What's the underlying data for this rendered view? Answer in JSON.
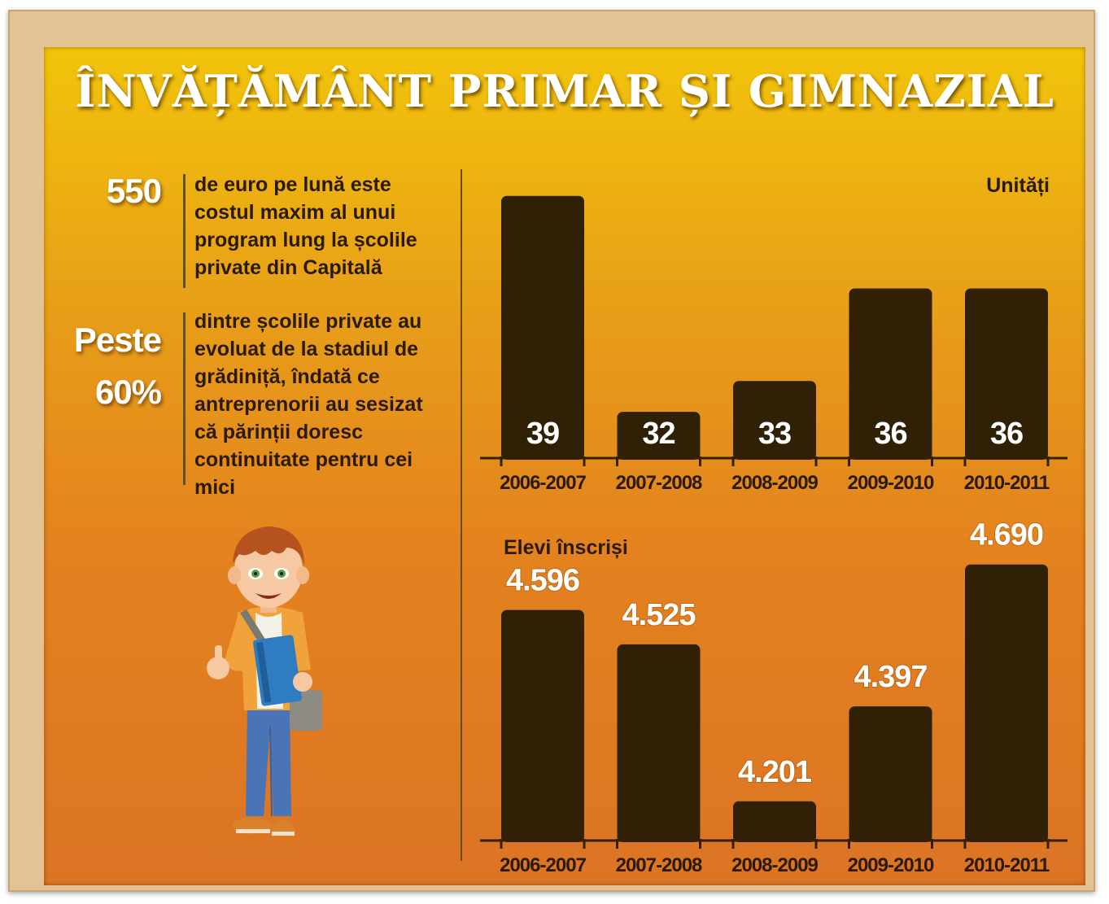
{
  "title": "ÎNVĂȚĂMÂNT PRIMAR ȘI GIMNAZIAL",
  "stats": [
    {
      "big_lines": [
        "550"
      ],
      "text": "de euro pe lună este costul maxim al unui program lung la școlile private din Capitală"
    },
    {
      "big_lines": [
        "Peste",
        "60%"
      ],
      "text": "dintre școlile private au evoluat de la stadiul de grădiniță, îndată ce antreprenorii au sesizat că părinții doresc continuitate pentru cei mici"
    }
  ],
  "colors": {
    "bar": "#2f2006",
    "axis": "#2f2006",
    "value_inside": "#ffffff",
    "value_above": "#ffffff"
  },
  "chart_data": [
    {
      "type": "bar",
      "title": "Unități",
      "categories": [
        "2006-2007",
        "2007-2008",
        "2008-2009",
        "2009-2010",
        "2010-2011"
      ],
      "values": [
        39,
        32,
        33,
        36,
        36
      ],
      "value_labels": [
        "39",
        "32",
        "33",
        "36",
        "36"
      ],
      "ylim": [
        30.5,
        39.6
      ],
      "label_position": "inside-bottom"
    },
    {
      "type": "bar",
      "title": "Elevi înscriși",
      "categories": [
        "2006-2007",
        "2007-2008",
        "2008-2009",
        "2009-2010",
        "2010-2011"
      ],
      "values": [
        4596,
        4525,
        4201,
        4397,
        4690
      ],
      "value_labels": [
        "4.596",
        "4.525",
        "4.201",
        "4.397",
        "4.690"
      ],
      "ylim": [
        4120,
        4750
      ],
      "label_position": "above"
    }
  ]
}
